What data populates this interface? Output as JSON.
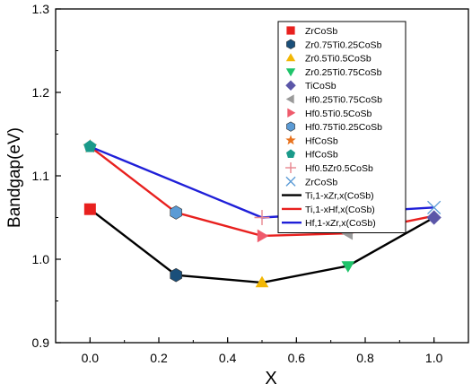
{
  "chart_data": {
    "type": "line",
    "xlabel": "X",
    "ylabel": "Bandgap(eV)",
    "xlim": [
      -0.1,
      1.1
    ],
    "ylim": [
      0.9,
      1.3
    ],
    "xticks": [
      "0.0",
      "0.2",
      "0.4",
      "0.6",
      "0.8",
      "1.0"
    ],
    "xtick_values": [
      0.0,
      0.2,
      0.4,
      0.6,
      0.8,
      1.0
    ],
    "yticks": [
      "0.9",
      "1.0",
      "1.1",
      "1.2",
      "1.3"
    ],
    "ytick_values": [
      0.9,
      1.0,
      1.1,
      1.2,
      1.3
    ],
    "grid": false,
    "legend_position": "top-right",
    "lines": [
      {
        "name": "Ti,1-xZr,x(CoSb)",
        "color": "#000000",
        "x": [
          0.0,
          0.25,
          0.5,
          0.75,
          1.0
        ],
        "y": [
          1.06,
          0.981,
          0.972,
          0.992,
          1.05
        ]
      },
      {
        "name": "Ti,1-xHf,x(CoSb)",
        "color": "#e8201e",
        "x": [
          0.0,
          0.25,
          0.5,
          0.75,
          1.0
        ],
        "y": [
          1.135,
          1.056,
          1.028,
          1.031,
          1.052
        ]
      },
      {
        "name": "Hf,1-xZr,x(CoSb)",
        "color": "#1f1fd8",
        "x": [
          0.0,
          0.5,
          1.0
        ],
        "y": [
          1.135,
          1.05,
          1.062
        ]
      }
    ],
    "points": [
      {
        "name": "ZrCoSb",
        "marker": "square",
        "color": "#e8201e",
        "x": 0.0,
        "y": 1.06
      },
      {
        "name": "Zr0.75Ti0.25CoSb",
        "marker": "hexagon",
        "color": "#1a4f7a",
        "x": 0.25,
        "y": 0.981
      },
      {
        "name": "Zr0.5Ti0.5CoSb",
        "marker": "triangle-up",
        "color": "#f2b705",
        "x": 0.5,
        "y": 0.972
      },
      {
        "name": "Zr0.25Ti0.75CoSb",
        "marker": "triangle-down",
        "color": "#1fc46a",
        "x": 0.75,
        "y": 0.992
      },
      {
        "name": "TiCoSb",
        "marker": "diamond",
        "color": "#5b56a8",
        "x": 1.0,
        "y": 1.05
      },
      {
        "name": "Hf0.25Ti0.75CoSb",
        "marker": "triangle-left",
        "color": "#9a9a9a",
        "x": 0.75,
        "y": 1.031
      },
      {
        "name": "Hf0.5Ti0.5CoSb",
        "marker": "triangle-right",
        "color": "#ef5b6c",
        "x": 0.5,
        "y": 1.028
      },
      {
        "name": "Hf0.75Ti0.25CoSb",
        "marker": "hexagon",
        "color": "#5b9bd5",
        "x": 0.25,
        "y": 1.056
      },
      {
        "name": "HfCoSb",
        "marker": "star",
        "color": "#e8731e",
        "x": 0.0,
        "y": 1.135
      },
      {
        "name": "HfCoSb",
        "marker": "pentagon",
        "color": "#1a9a8a",
        "x": 0.0,
        "y": 1.135
      },
      {
        "name": "Hf0.5Zr0.5CoSb",
        "marker": "plus",
        "color": "#e8868f",
        "x": 0.5,
        "y": 1.05
      },
      {
        "name": "ZrCoSb",
        "marker": "x",
        "color": "#5b9bd5",
        "x": 1.0,
        "y": 1.062
      }
    ]
  }
}
